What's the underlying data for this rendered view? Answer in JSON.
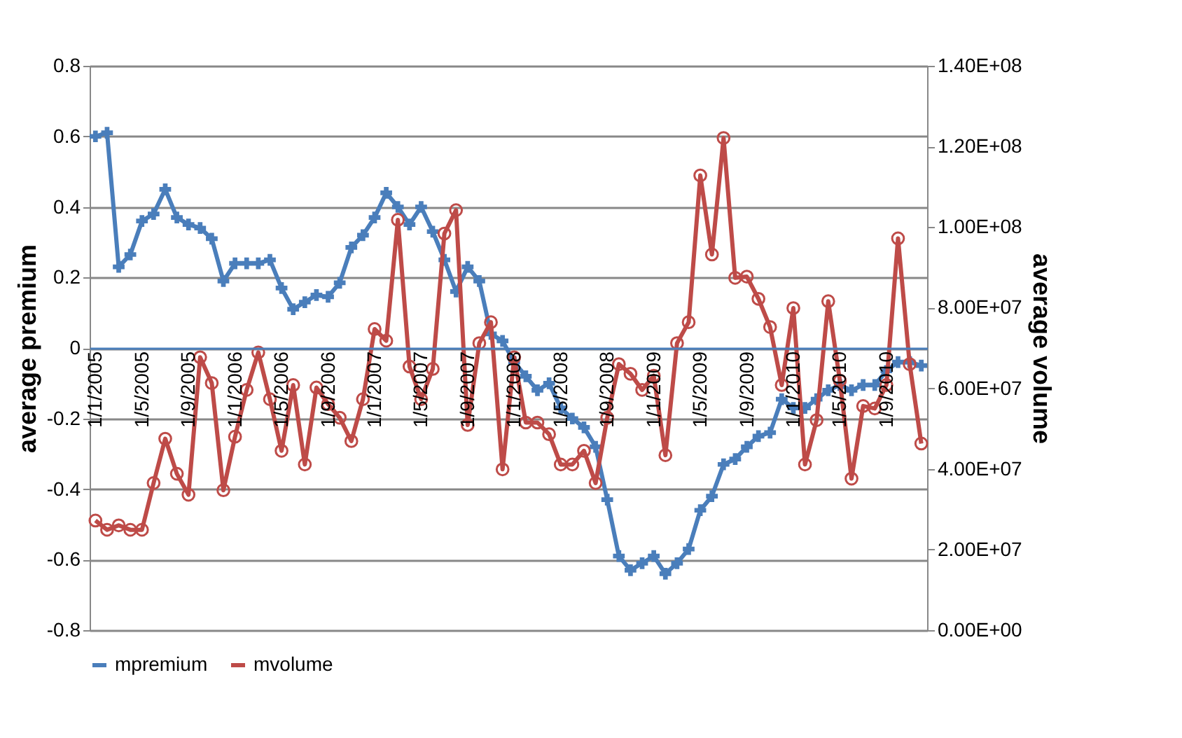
{
  "chart_data": {
    "type": "line",
    "categories": [
      "1/1/2005",
      null,
      null,
      null,
      "1/5/2005",
      null,
      null,
      null,
      "1/9/2005",
      null,
      null,
      null,
      "1/1/2006",
      null,
      null,
      null,
      "1/5/2006",
      null,
      null,
      null,
      "1/9/2006",
      null,
      null,
      null,
      "1/1/2007",
      null,
      null,
      null,
      "1/5/2007",
      null,
      null,
      null,
      "1/9/2007",
      null,
      null,
      null,
      "1/1/2008",
      null,
      null,
      null,
      "1/5/2008",
      null,
      null,
      null,
      "1/9/2008",
      null,
      null,
      null,
      "1/1/2009",
      null,
      null,
      null,
      "1/5/2009",
      null,
      null,
      null,
      "1/9/2009",
      null,
      null,
      null,
      "1/1/2010",
      null,
      null,
      null,
      "1/5/2010",
      null,
      null,
      null,
      "1/9/2010",
      null,
      null,
      null
    ],
    "series": [
      {
        "name": "mpremium",
        "color": "#4a7ebb",
        "marker": "cross",
        "values": [
          0.6,
          0.61,
          0.23,
          0.265,
          0.36,
          0.38,
          0.45,
          0.37,
          0.35,
          0.34,
          0.31,
          0.19,
          0.24,
          0.24,
          0.24,
          0.25,
          0.17,
          0.11,
          0.13,
          0.15,
          0.145,
          0.185,
          0.285,
          0.32,
          0.37,
          0.44,
          0.4,
          0.35,
          0.4,
          0.33,
          0.25,
          0.16,
          0.23,
          0.19,
          0.04,
          0.02,
          -0.04,
          -0.08,
          -0.12,
          -0.1,
          -0.17,
          -0.2,
          -0.225,
          -0.28,
          -0.43,
          -0.59,
          -0.63,
          -0.61,
          -0.59,
          -0.64,
          -0.61,
          -0.57,
          -0.46,
          -0.42,
          -0.33,
          -0.315,
          -0.28,
          -0.25,
          -0.24,
          -0.145,
          -0.17,
          -0.17,
          -0.145,
          -0.12,
          -0.105,
          -0.12,
          -0.105,
          -0.105,
          -0.065,
          -0.04,
          -0.04,
          -0.05
        ]
      },
      {
        "name": "mvolume",
        "color": "#be4b48",
        "marker": "circle",
        "axis": "y2",
        "values": [
          27200000,
          24900000,
          26000000,
          24900000,
          24900000,
          36500000,
          47500000,
          38800000,
          33600000,
          67700000,
          61300000,
          34700000,
          48000000,
          59600000,
          68900000,
          57300000,
          44500000,
          60800000,
          41100000,
          60200000,
          56100000,
          52700000,
          46900000,
          57300000,
          74700000,
          71800000,
          101800000,
          65400000,
          57300000,
          64800000,
          98400000,
          104200000,
          50900000,
          71200000,
          76400000,
          39900000,
          67700000,
          51500000,
          51500000,
          48600000,
          41100000,
          41100000,
          44500000,
          36500000,
          52700000,
          66000000,
          63600000,
          59600000,
          63100000,
          43400000,
          71200000,
          76400000,
          112800000,
          93200000,
          122100000,
          87400000,
          87700000,
          82200000,
          75200000,
          60800000,
          79900000,
          41100000,
          52100000,
          81600000,
          61900000,
          37600000,
          55600000,
          55000000,
          60800000,
          97200000,
          66000000,
          46300000
        ]
      }
    ],
    "ylim": [
      -0.8,
      0.8
    ],
    "yticks": [
      -0.8,
      -0.6,
      -0.4,
      -0.2,
      0,
      0.2,
      0.4,
      0.6,
      0.8
    ],
    "y2lim": [
      0,
      140000000
    ],
    "y2ticks": [
      {
        "value": 0,
        "label": "0.00E+00"
      },
      {
        "value": 20000000,
        "label": "2.00E+07"
      },
      {
        "value": 40000000,
        "label": "4.00E+07"
      },
      {
        "value": 60000000,
        "label": "6.00E+07"
      },
      {
        "value": 80000000,
        "label": "8.00E+07"
      },
      {
        "value": 100000000,
        "label": "1.00E+08"
      },
      {
        "value": 120000000,
        "label": "1.20E+08"
      },
      {
        "value": 140000000,
        "label": "1.40E+08"
      }
    ],
    "ylabel": "average premium",
    "y2label": "average volume",
    "grid": "y",
    "legend": "bottom"
  }
}
